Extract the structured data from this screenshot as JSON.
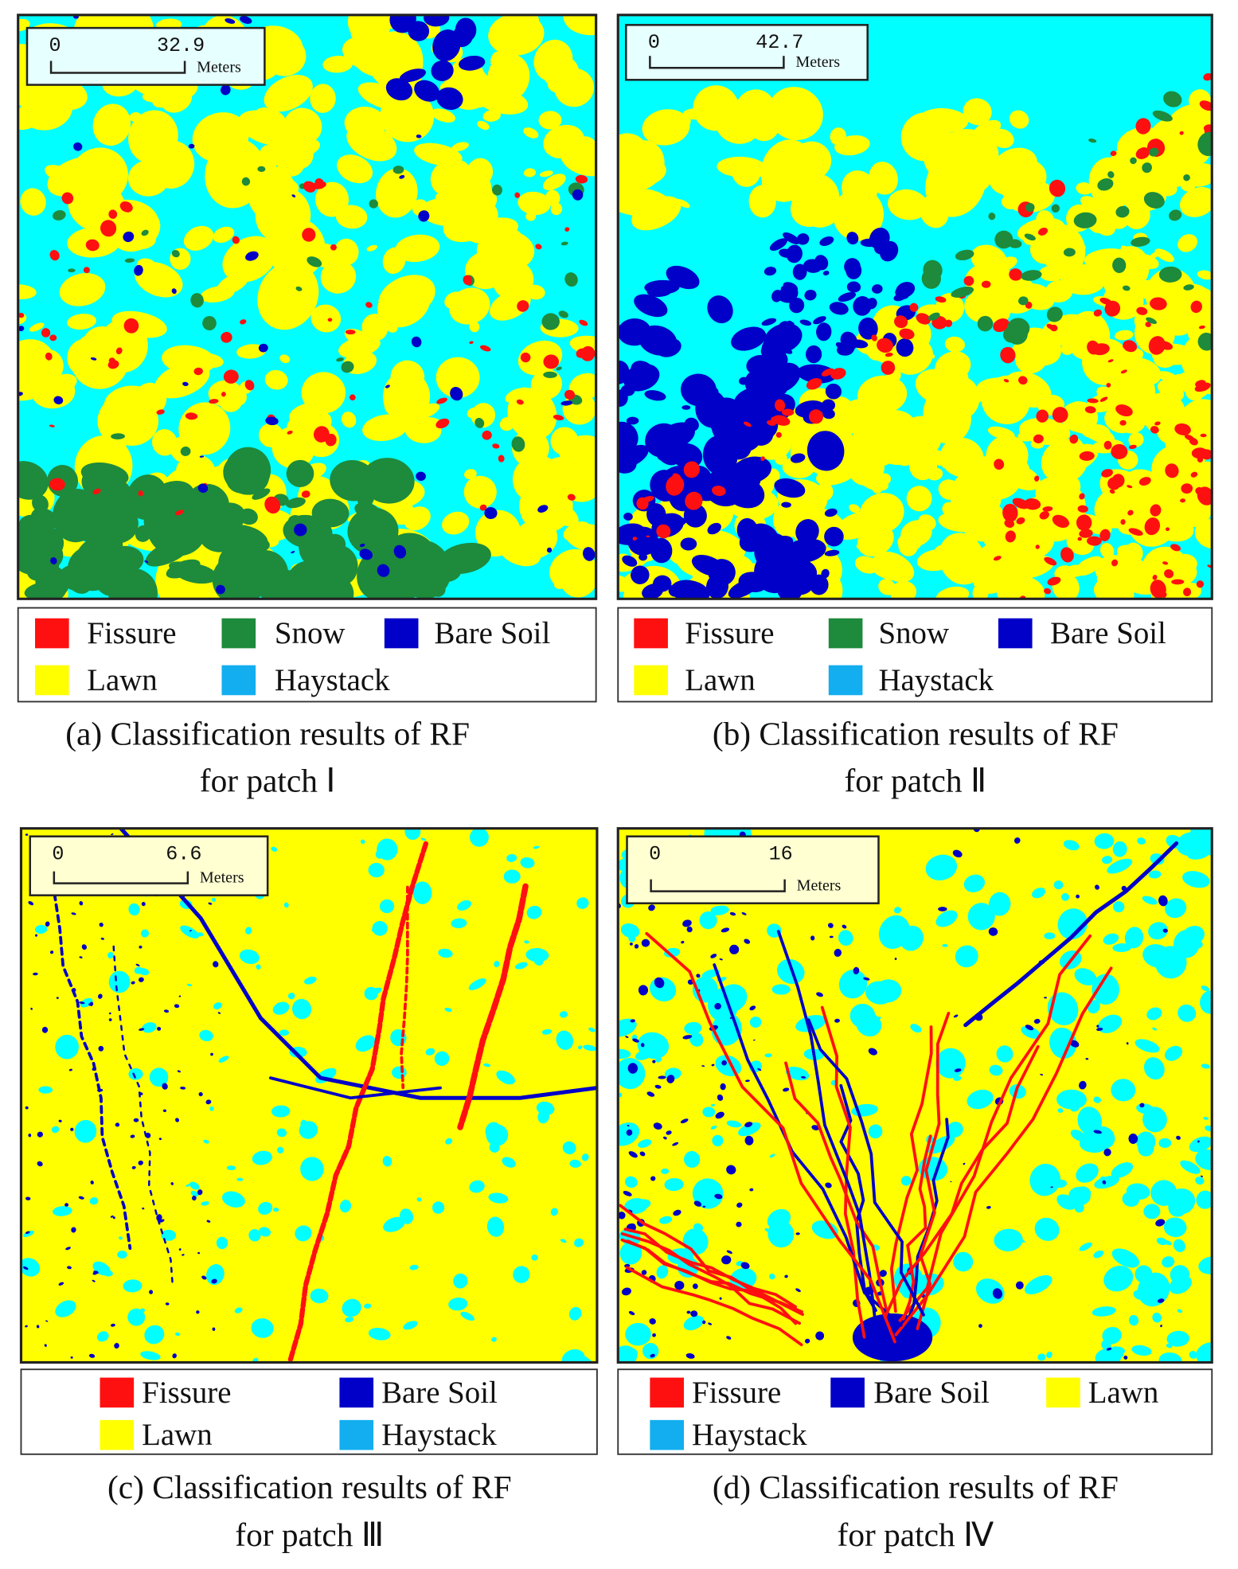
{
  "panels": [
    {
      "scale_bar": {
        "start": "0",
        "end": "32.9",
        "unit": "Meters"
      },
      "legend": [
        {
          "label": "Fissure",
          "color": "#ff1010"
        },
        {
          "label": "Snow",
          "color": "#1e8a3c"
        },
        {
          "label": "Bare Soil",
          "color": "#0000c8"
        },
        {
          "label": "Lawn",
          "color": "#ffff00"
        },
        {
          "label": "Haystack",
          "color": "#12aef0"
        }
      ],
      "caption": [
        "(a) Classification results of RF",
        "for patch Ⅰ"
      ]
    },
    {
      "scale_bar": {
        "start": "0",
        "end": "42.7",
        "unit": "Meters"
      },
      "legend": [
        {
          "label": "Fissure",
          "color": "#ff1010"
        },
        {
          "label": "Snow",
          "color": "#1e8a3c"
        },
        {
          "label": "Bare Soil",
          "color": "#0000c8"
        },
        {
          "label": "Lawn",
          "color": "#ffff00"
        },
        {
          "label": "Haystack",
          "color": "#12aef0"
        }
      ],
      "caption": [
        "(b) Classification results of RF",
        "for patch Ⅱ"
      ]
    },
    {
      "scale_bar": {
        "start": "0",
        "end": "6.6",
        "unit": "Meters"
      },
      "legend": [
        {
          "label": "Fissure",
          "color": "#ff1010"
        },
        {
          "label": "Bare Soil",
          "color": "#0000c8"
        },
        {
          "label": "Lawn",
          "color": "#ffff00"
        },
        {
          "label": "Haystack",
          "color": "#12aef0"
        }
      ],
      "caption": [
        "(c) Classification results of RF",
        "for patch Ⅲ"
      ]
    },
    {
      "scale_bar": {
        "start": "0",
        "end": "16",
        "unit": "Meters"
      },
      "legend": [
        {
          "label": "Fissure",
          "color": "#ff1010"
        },
        {
          "label": "Bare Soil",
          "color": "#0000c8"
        },
        {
          "label": "Lawn",
          "color": "#ffff00"
        },
        {
          "label": "Haystack",
          "color": "#12aef0"
        }
      ],
      "caption": [
        "(d) Classification results of RF",
        "for patch Ⅳ"
      ]
    }
  ]
}
